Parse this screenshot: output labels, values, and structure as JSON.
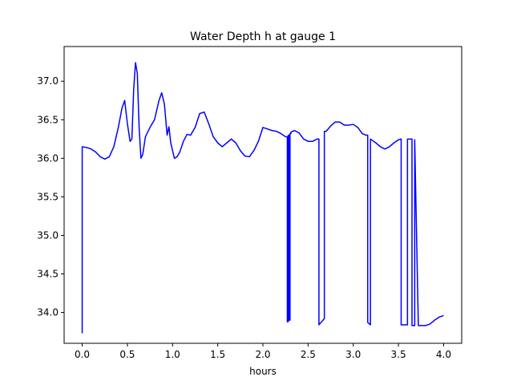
{
  "chart_data": {
    "type": "line",
    "title": "Water Depth h at gauge 1",
    "xlabel": "hours",
    "ylabel": "",
    "xlim": [
      -0.2,
      4.2
    ],
    "ylim": [
      33.6,
      37.45
    ],
    "xticks": [
      0.0,
      0.5,
      1.0,
      1.5,
      2.0,
      2.5,
      3.0,
      3.5,
      4.0
    ],
    "xtick_labels": [
      "0.0",
      "0.5",
      "1.0",
      "1.5",
      "2.0",
      "2.5",
      "3.0",
      "3.5",
      "4.0"
    ],
    "yticks": [
      34.0,
      34.5,
      35.0,
      35.5,
      36.0,
      36.5,
      37.0
    ],
    "ytick_labels": [
      "34.0",
      "34.5",
      "35.0",
      "35.5",
      "36.0",
      "36.5",
      "37.0"
    ],
    "grid": false,
    "series": [
      {
        "color": "#0000ff",
        "x": [
          0.0,
          0.0,
          0.05,
          0.1,
          0.15,
          0.2,
          0.25,
          0.3,
          0.35,
          0.4,
          0.44,
          0.47,
          0.5,
          0.53,
          0.55,
          0.57,
          0.59,
          0.61,
          0.63,
          0.65,
          0.67,
          0.7,
          0.75,
          0.8,
          0.85,
          0.88,
          0.91,
          0.94,
          0.96,
          0.98,
          1.0,
          1.02,
          1.05,
          1.08,
          1.12,
          1.16,
          1.2,
          1.25,
          1.3,
          1.35,
          1.4,
          1.45,
          1.5,
          1.55,
          1.6,
          1.65,
          1.7,
          1.75,
          1.8,
          1.85,
          1.9,
          1.95,
          2.0,
          2.05,
          2.1,
          2.15,
          2.2,
          2.25,
          2.27,
          2.27,
          2.28,
          2.28,
          2.29,
          2.29,
          2.3,
          2.3,
          2.31,
          2.31,
          2.35,
          2.4,
          2.45,
          2.5,
          2.55,
          2.6,
          2.62,
          2.62,
          2.68,
          2.68,
          2.7,
          2.75,
          2.8,
          2.85,
          2.9,
          2.95,
          3.0,
          3.05,
          3.1,
          3.14,
          3.16,
          3.16,
          3.19,
          3.19,
          3.25,
          3.3,
          3.35,
          3.4,
          3.45,
          3.5,
          3.53,
          3.53,
          3.6,
          3.6,
          3.65,
          3.65,
          3.68,
          3.68,
          3.72,
          3.8,
          3.85,
          3.9,
          3.95,
          4.0
        ],
        "y": [
          33.73,
          36.15,
          36.14,
          36.12,
          36.08,
          36.02,
          35.99,
          36.02,
          36.15,
          36.4,
          36.65,
          36.75,
          36.45,
          36.22,
          36.25,
          36.9,
          37.24,
          37.1,
          36.4,
          36.0,
          36.05,
          36.28,
          36.4,
          36.5,
          36.75,
          36.85,
          36.7,
          36.3,
          36.41,
          36.2,
          36.1,
          36.0,
          36.02,
          36.08,
          36.22,
          36.31,
          36.3,
          36.4,
          36.58,
          36.6,
          36.45,
          36.28,
          36.2,
          36.15,
          36.2,
          36.25,
          36.2,
          36.1,
          36.03,
          36.02,
          36.1,
          36.22,
          36.4,
          36.38,
          36.36,
          36.35,
          36.32,
          36.28,
          36.28,
          33.88,
          33.88,
          36.3,
          36.3,
          33.9,
          33.9,
          36.32,
          36.32,
          36.34,
          36.36,
          36.33,
          36.25,
          36.22,
          36.22,
          36.25,
          36.25,
          33.84,
          33.92,
          36.35,
          36.35,
          36.42,
          36.47,
          36.47,
          36.43,
          36.43,
          36.44,
          36.4,
          36.32,
          36.3,
          36.3,
          33.87,
          33.84,
          36.25,
          36.2,
          36.15,
          36.12,
          36.15,
          36.2,
          36.24,
          36.25,
          33.84,
          33.84,
          36.25,
          36.25,
          33.83,
          33.83,
          36.24,
          33.83,
          33.83,
          33.85,
          33.9,
          33.94,
          33.96
        ]
      }
    ]
  }
}
